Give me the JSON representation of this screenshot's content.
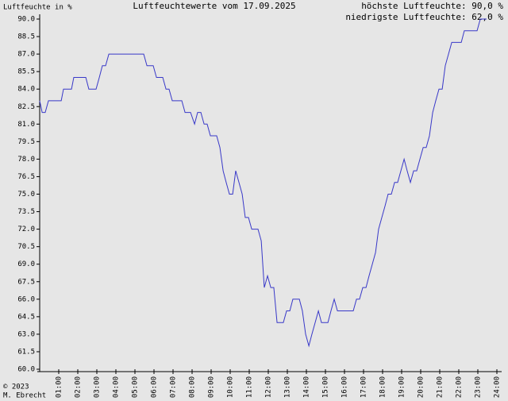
{
  "chart_data": {
    "type": "line",
    "title": "Luftfeuchtewerte vom 17.09.2025",
    "y_label": "Luftfeuchte in %",
    "annotations": [
      "höchste Luftfeuchte: 90,0 %",
      "niedrigste Luftfeuchte: 62,0 %"
    ],
    "footer": [
      "© 2023",
      "M. Ebrecht"
    ],
    "xlim": [
      0,
      24
    ],
    "ylim": [
      60,
      90
    ],
    "xticks": [
      {
        "value": 1,
        "label": "01:00"
      },
      {
        "value": 2,
        "label": "02:00"
      },
      {
        "value": 3,
        "label": "03:00"
      },
      {
        "value": 4,
        "label": "04:00"
      },
      {
        "value": 5,
        "label": "05:00"
      },
      {
        "value": 6,
        "label": "06:00"
      },
      {
        "value": 7,
        "label": "07:00"
      },
      {
        "value": 8,
        "label": "08:00"
      },
      {
        "value": 9,
        "label": "09:00"
      },
      {
        "value": 10,
        "label": "10:00"
      },
      {
        "value": 11,
        "label": "11:00"
      },
      {
        "value": 12,
        "label": "12:00"
      },
      {
        "value": 13,
        "label": "13:00"
      },
      {
        "value": 14,
        "label": "14:00"
      },
      {
        "value": 15,
        "label": "15:00"
      },
      {
        "value": 16,
        "label": "16:00"
      },
      {
        "value": 17,
        "label": "17:00"
      },
      {
        "value": 18,
        "label": "18:00"
      },
      {
        "value": 19,
        "label": "19:00"
      },
      {
        "value": 20,
        "label": "20:00"
      },
      {
        "value": 21,
        "label": "21:00"
      },
      {
        "value": 22,
        "label": "22:00"
      },
      {
        "value": 23,
        "label": "23:00"
      },
      {
        "value": 24,
        "label": "24:00"
      }
    ],
    "yticks": [
      {
        "value": 60,
        "label": "60.0"
      },
      61.5,
      {
        "value": 63,
        "label": "63.0"
      },
      64.5,
      {
        "value": 66,
        "label": "66.0"
      },
      67.5,
      {
        "value": 69,
        "label": "69.0"
      },
      70.5,
      {
        "value": 72,
        "label": "72.0"
      },
      73.5,
      {
        "value": 75,
        "label": "75.0"
      },
      76.5,
      {
        "value": 78,
        "label": "78.0"
      },
      79.5,
      {
        "value": 81,
        "label": "81.0"
      },
      82.5,
      {
        "value": 84,
        "label": "84.0"
      },
      85.5,
      {
        "value": 87,
        "label": "87.0"
      },
      88.5,
      {
        "value": 90,
        "label": "90.0"
      }
    ],
    "x": [
      0,
      0.13,
      0.29,
      0.46,
      1.13,
      1.25,
      1.67,
      1.79,
      2.42,
      2.58,
      2.96,
      3.13,
      3.29,
      3.46,
      3.63,
      5.46,
      5.63,
      5.96,
      6.13,
      6.46,
      6.63,
      6.79,
      6.96,
      7.46,
      7.63,
      7.92,
      8.13,
      8.29,
      8.46,
      8.63,
      8.79,
      8.96,
      9.29,
      9.46,
      9.63,
      9.79,
      9.96,
      10.13,
      10.29,
      10.46,
      10.63,
      10.79,
      10.96,
      11.13,
      11.46,
      11.63,
      11.79,
      11.96,
      12.13,
      12.29,
      12.46,
      12.79,
      12.96,
      13.13,
      13.29,
      13.63,
      13.79,
      13.96,
      14.13,
      14.29,
      14.46,
      14.63,
      14.79,
      15.13,
      15.29,
      15.46,
      15.63,
      16.46,
      16.63,
      16.79,
      16.96,
      17.13,
      17.29,
      17.46,
      17.63,
      17.79,
      17.96,
      18.13,
      18.29,
      18.46,
      18.63,
      18.79,
      18.96,
      19.13,
      19.29,
      19.46,
      19.63,
      19.79,
      19.96,
      20.13,
      20.29,
      20.46,
      20.63,
      20.79,
      20.96,
      21.13,
      21.29,
      21.46,
      21.63,
      22.13,
      22.29,
      22.96,
      23.13,
      23.46
    ],
    "series": [
      {
        "name": "Luftfeuchte",
        "color": "#3838c8",
        "values": [
          83,
          82,
          82,
          83,
          83,
          84,
          84,
          85,
          85,
          84,
          84,
          85,
          86,
          86,
          87,
          87,
          86,
          86,
          85,
          85,
          84,
          84,
          83,
          83,
          82,
          82,
          81,
          82,
          82,
          81,
          81,
          80,
          80,
          79,
          77,
          76,
          75,
          75,
          77,
          76,
          75,
          73,
          73,
          72,
          72,
          71,
          67,
          68,
          67,
          67,
          64,
          64,
          65,
          65,
          66,
          66,
          65,
          63,
          62,
          63,
          64,
          65,
          64,
          64,
          65,
          66,
          65,
          65,
          66,
          66,
          67,
          67,
          68,
          69,
          70,
          72,
          73,
          74,
          75,
          75,
          76,
          76,
          77,
          78,
          77,
          76,
          77,
          77,
          78,
          79,
          79,
          80,
          82,
          83,
          84,
          84,
          86,
          87,
          88,
          88,
          89,
          89,
          90,
          90
        ]
      }
    ]
  }
}
